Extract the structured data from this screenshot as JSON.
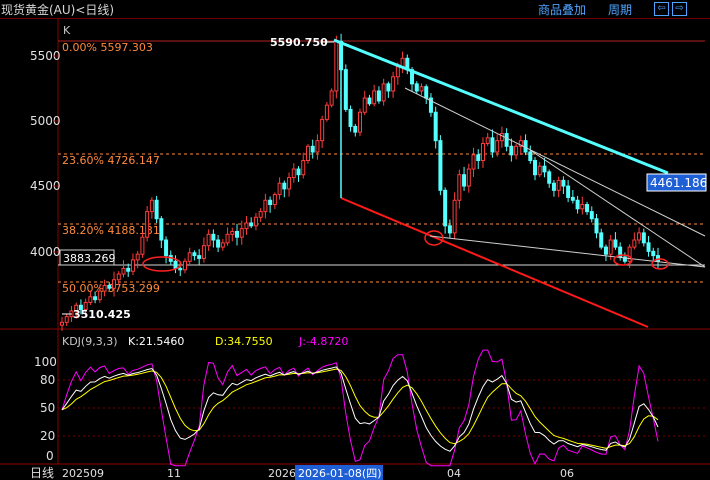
{
  "header": {
    "title": "现货黄金(AU)<日线)",
    "overlay_label": "商品叠加",
    "period_label": "周期",
    "prev_label": "⇦",
    "next_label": "⇨"
  },
  "main_panel": {
    "corner_label": "K",
    "price_ticks": [
      "5500",
      "5000",
      "4500",
      "4000"
    ],
    "high_label": "5590.750",
    "low_label": "3510.425",
    "current_price_label": "3883.269",
    "projection_label": "4461.186"
  },
  "indicator_panel": {
    "name": "KDJ(9,3,3)",
    "k_text": "K:21.5460",
    "d_text": "D:34.7550",
    "j_text": "J:-4.8720",
    "ticks": [
      "100",
      "80",
      "50",
      "20",
      "0"
    ]
  },
  "x_axis": {
    "period": "日线",
    "labels": [
      "202509",
      "11",
      "2026",
      "04",
      "06"
    ],
    "cursor_label": "2026-01-08(四)"
  },
  "colors": {
    "up": "#ff3c3c",
    "down": "#54ffff",
    "fib": "#ff8a3c",
    "k": "#ffffff",
    "d": "#ffff00",
    "j": "#ff00ff",
    "resistance": "#54ffff",
    "support": "#ff1a1a",
    "cursor": "#1f5fd6"
  },
  "chart_data": {
    "type": "candlestick",
    "ylim": [
      3480,
      5650
    ],
    "high": 5590.75,
    "low": 3510.425,
    "current": 3883.269,
    "fibonacci": [
      {
        "label": "0.00% 5597.303",
        "value": 5597.303
      },
      {
        "label": "23.60% 4726.147",
        "value": 4726.147
      },
      {
        "label": "38.20% 4188.131",
        "value": 4188.131
      },
      {
        "label": "50.00% 3753.299",
        "value": 3753.299
      }
    ],
    "closes": [
      3520,
      3560,
      3600,
      3640,
      3610,
      3660,
      3700,
      3680,
      3740,
      3780,
      3760,
      3820,
      3860,
      3900,
      3880,
      3960,
      4000,
      4120,
      4300,
      4380,
      4250,
      4100,
      3990,
      3950,
      3900,
      3890,
      3950,
      4010,
      3990,
      3970,
      4060,
      4140,
      4100,
      4050,
      4080,
      4140,
      4160,
      4120,
      4180,
      4220,
      4200,
      4260,
      4300,
      4380,
      4350,
      4420,
      4500,
      4460,
      4540,
      4600,
      4560,
      4660,
      4760,
      4720,
      4800,
      4950,
      5050,
      5150,
      5500,
      5300,
      5020,
      4900,
      4860,
      5000,
      5100,
      5060,
      5150,
      5080,
      5200,
      5150,
      5250,
      5320,
      5380,
      5300,
      5200,
      5150,
      5180,
      5100,
      5000,
      4800,
      4450,
      4200,
      4150,
      4380,
      4560,
      4480,
      4600,
      4700,
      4660,
      4780,
      4820,
      4720,
      4800,
      4850,
      4760,
      4700,
      4760,
      4800,
      4720,
      4660,
      4560,
      4620,
      4580,
      4500,
      4450,
      4520,
      4480,
      4400,
      4380,
      4320,
      4350,
      4300,
      4250,
      4150,
      4050,
      4000,
      4100,
      4050,
      3980,
      3950,
      4050,
      4100,
      4150,
      4080,
      4020,
      3990,
      3950
    ],
    "kdj": {
      "K": 21.546,
      "D": 34.755,
      "J": -4.872,
      "ylim": [
        0,
        110
      ]
    }
  }
}
